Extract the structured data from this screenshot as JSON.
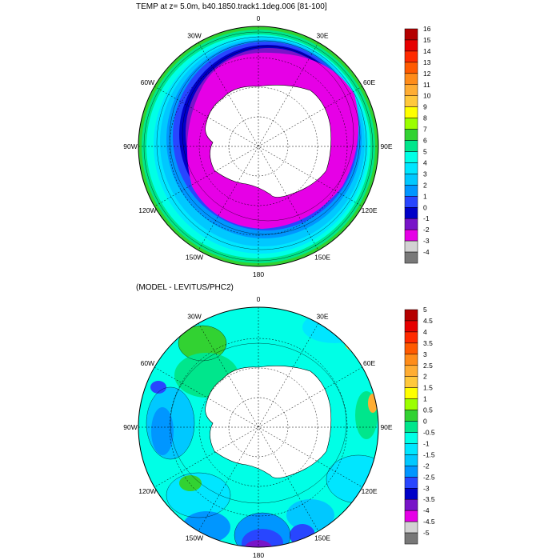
{
  "top_panel": {
    "title": "TEMP at z=   5.0m, b40.1850.track1.1deg.006 [81-100]",
    "lon_labels": [
      "0",
      "30E",
      "60E",
      "90E",
      "120E",
      "150E",
      "180",
      "150W",
      "120W",
      "90W",
      "60W",
      "30W"
    ],
    "colorbar": {
      "labels": [
        "16",
        "15",
        "14",
        "13",
        "12",
        "11",
        "10",
        "9",
        "8",
        "7",
        "6",
        "5",
        "4",
        "3",
        "2",
        "1",
        "0",
        "-1",
        "-2",
        "-3",
        "-4"
      ],
      "colors": [
        "#b40000",
        "#e60000",
        "#ff2a00",
        "#ff5a00",
        "#ff8c19",
        "#ffad33",
        "#ffc83c",
        "#ffff00",
        "#9bff00",
        "#32d232",
        "#00e68c",
        "#00ffe6",
        "#00e6ff",
        "#00c8ff",
        "#0096ff",
        "#2846ff",
        "#0000c8",
        "#7814c8",
        "#e600e6",
        "#d2d2d2",
        "#787878"
      ]
    }
  },
  "bottom_panel": {
    "title": "(MODEL - LEVITUS/PHC2)",
    "lon_labels": [
      "0",
      "30E",
      "60E",
      "90E",
      "120E",
      "150E",
      "180",
      "150W",
      "120W",
      "90W",
      "60W",
      "30W"
    ],
    "colorbar": {
      "labels": [
        "5",
        "4.5",
        "4",
        "3.5",
        "3",
        "2.5",
        "2",
        "1.5",
        "1",
        "0.5",
        "0",
        "-0.5",
        "-1",
        "-1.5",
        "-2",
        "-2.5",
        "-3",
        "-3.5",
        "-4",
        "-4.5",
        "-5"
      ],
      "colors": [
        "#b40000",
        "#e60000",
        "#ff2a00",
        "#ff5a00",
        "#ff8c19",
        "#ffad33",
        "#ffc83c",
        "#ffff00",
        "#9bff00",
        "#32d232",
        "#00e68c",
        "#00ffe6",
        "#00e6ff",
        "#00c8ff",
        "#0096ff",
        "#2846ff",
        "#0000c8",
        "#7814c8",
        "#e600e6",
        "#d2d2d2",
        "#787878"
      ]
    }
  }
}
